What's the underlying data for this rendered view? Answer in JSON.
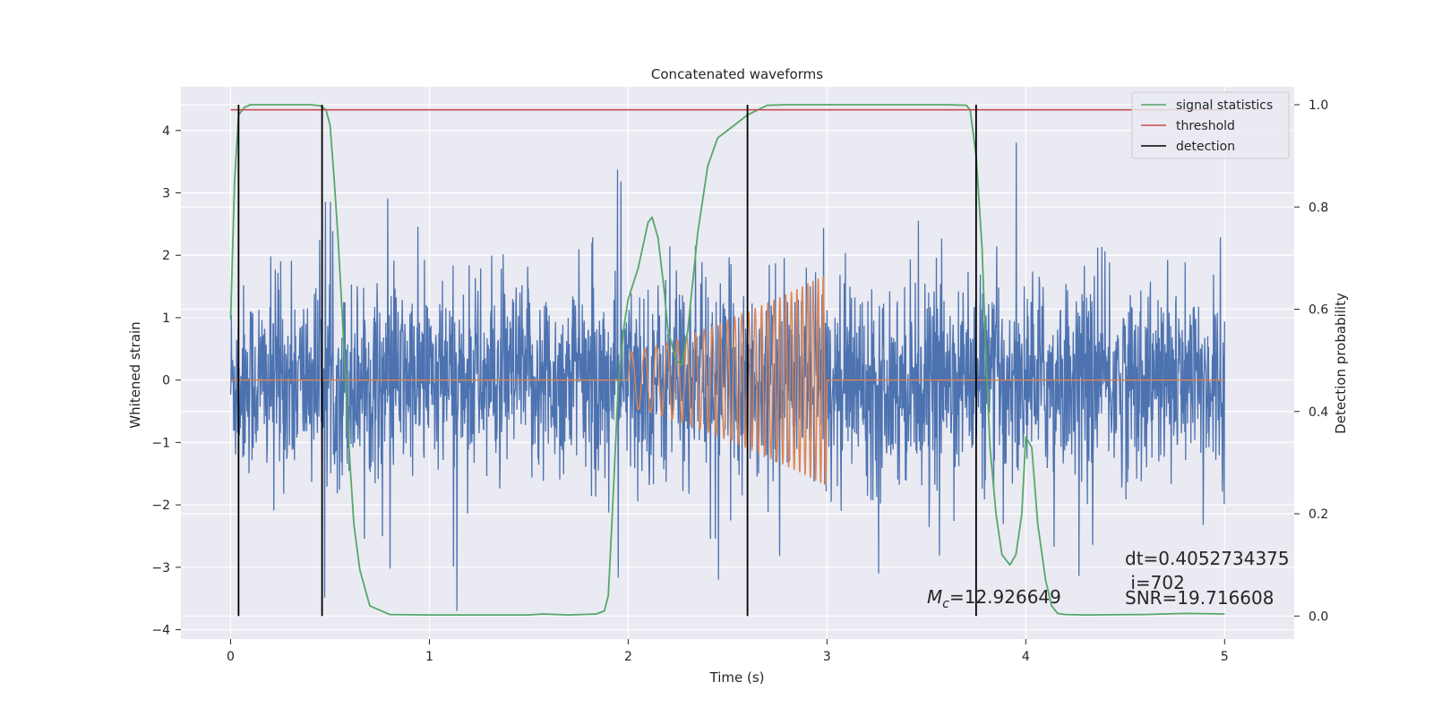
{
  "chart_data": {
    "type": "line",
    "title": "Concatenated waveforms",
    "xlabel": "Time (s)",
    "ylabel": "Whitened strain",
    "y2label": "Detection probability",
    "xlim": [
      -0.25,
      5.35
    ],
    "ylim": [
      -4.15,
      4.7
    ],
    "y2lim": [
      -0.045,
      1.035
    ],
    "xticks": [
      0,
      1,
      2,
      3,
      4,
      5
    ],
    "yticks": [
      -4,
      -3,
      -2,
      -1,
      0,
      1,
      2,
      3,
      4
    ],
    "y2ticks": [
      0.0,
      0.2,
      0.4,
      0.6,
      0.8,
      1.0
    ],
    "grid": true,
    "legend_position": "top-right",
    "legend": [
      "signal statistics",
      "threshold",
      "detection"
    ],
    "colors": {
      "noise": "#4c72b0",
      "template": "#dd8452",
      "signal_statistics": "#55a868",
      "threshold": "#c44e52",
      "detection": "#000000",
      "background": "#eaeaf2",
      "grid": "#ffffff"
    },
    "series": [
      {
        "name": "",
        "axis": "left",
        "description_values": "whitened noise, approx amplitude range -3.7 to 4.3",
        "x_range": [
          0,
          5
        ],
        "envelope": {
          "typical": 1.6,
          "peak_max": 4.3,
          "peak_min": -3.7
        }
      },
      {
        "name": "",
        "axis": "left",
        "chirp": {
          "t_start": 2.0,
          "t_end": 3.0,
          "amp_start": 0.45,
          "amp_end": 1.7,
          "f_start": 14,
          "f_end": 40
        }
      },
      {
        "name": "signal statistics",
        "axis": "right",
        "x": [
          0.0,
          0.02,
          0.04,
          0.07,
          0.1,
          0.2,
          0.3,
          0.4,
          0.45,
          0.48,
          0.5,
          0.52,
          0.54,
          0.56,
          0.58,
          0.6,
          0.62,
          0.65,
          0.7,
          0.8,
          1.0,
          1.2,
          1.5,
          1.57,
          1.7,
          1.84,
          1.88,
          1.9,
          1.92,
          1.95,
          1.98,
          2.0,
          2.05,
          2.1,
          2.12,
          2.15,
          2.18,
          2.2,
          2.24,
          2.27,
          2.3,
          2.35,
          2.4,
          2.45,
          2.5,
          2.6,
          2.7,
          2.8,
          3.0,
          3.3,
          3.6,
          3.7,
          3.72,
          3.75,
          3.78,
          3.8,
          3.82,
          3.85,
          3.88,
          3.92,
          3.95,
          3.98,
          4.0,
          4.03,
          4.06,
          4.1,
          4.13,
          4.16,
          4.2,
          4.3,
          4.6,
          4.8,
          5.0
        ],
        "values": [
          0.58,
          0.85,
          0.98,
          0.995,
          1.0,
          1.0,
          1.0,
          1.0,
          0.998,
          0.99,
          0.96,
          0.86,
          0.74,
          0.6,
          0.45,
          0.3,
          0.18,
          0.09,
          0.02,
          0.003,
          0.002,
          0.002,
          0.002,
          0.004,
          0.002,
          0.004,
          0.01,
          0.04,
          0.2,
          0.45,
          0.57,
          0.62,
          0.68,
          0.77,
          0.78,
          0.74,
          0.64,
          0.56,
          0.5,
          0.49,
          0.56,
          0.75,
          0.88,
          0.935,
          0.95,
          0.98,
          0.999,
          1.0,
          1.0,
          1.0,
          1.0,
          0.999,
          0.99,
          0.9,
          0.72,
          0.5,
          0.33,
          0.2,
          0.12,
          0.1,
          0.12,
          0.2,
          0.35,
          0.33,
          0.18,
          0.07,
          0.02,
          0.005,
          0.003,
          0.002,
          0.003,
          0.005,
          0.004
        ]
      },
      {
        "name": "threshold",
        "axis": "right",
        "x": [
          0.0,
          5.0
        ],
        "values": [
          0.99,
          0.99
        ]
      }
    ],
    "detections": [
      0.04,
      0.46,
      2.6,
      3.75
    ],
    "detection_y_range": [
      0.0,
      1.0
    ],
    "annotations": {
      "mc": {
        "text_prefix": "M",
        "text_sub": "c",
        "text_value": "=12.926649"
      },
      "dt": "dt=0.4052734375",
      "i": " i=702",
      "snr": "SNR=19.716608"
    }
  }
}
